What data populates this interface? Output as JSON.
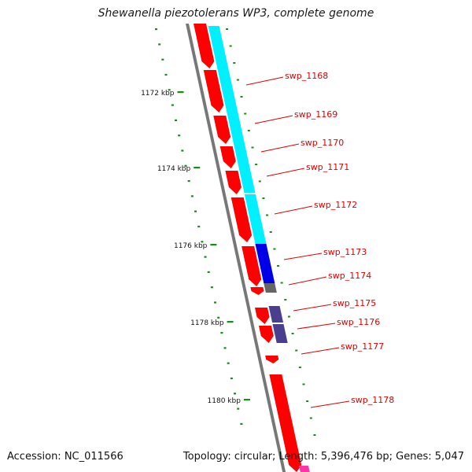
{
  "title": "Shewanella piezotolerans WP3, complete genome",
  "accession_text": "Accession: NC_011566",
  "summary_text": "Topology: circular; Length: 5,396,476 bp; Genes: 5,047",
  "colors": {
    "gene_red": "#ff0000",
    "label_red": "#e00000",
    "backbone_gray": "#777777",
    "tick_green": "#1a8a1a",
    "cyan_track": "#00f0ff",
    "blue_track": "#0000e6",
    "purple_track": "#4a3f8f",
    "gray_block": "#666666",
    "magenta": "#ff33aa"
  },
  "kbp_markers": [
    "1172 kbp",
    "1174 kbp",
    "1176 kbp",
    "1178 kbp",
    "1180 kbp"
  ],
  "genes": [
    "swp_1168",
    "swp_1169",
    "swp_1170",
    "swp_1171",
    "swp_1172",
    "swp_1173",
    "swp_1174",
    "swp_1175",
    "swp_1176",
    "swp_1177",
    "swp_1178"
  ]
}
